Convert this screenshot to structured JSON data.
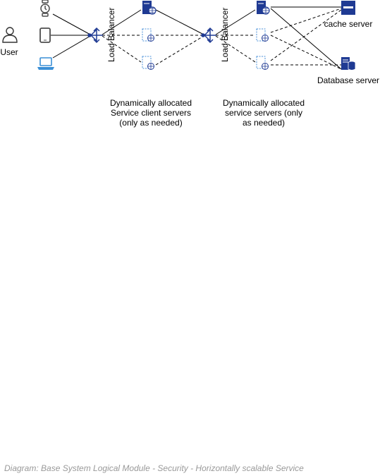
{
  "labels": {
    "user": "User",
    "load_balancer_1": "Load Balancer",
    "load_balancer_2": "Load Balancer",
    "cache_server": "cache server",
    "database_server": "Database server"
  },
  "notes": {
    "client_servers": [
      "Dynamically allocated",
      "Service client servers",
      "(only as needed)"
    ],
    "service_servers": [
      "Dynamically allocated",
      "service servers (only",
      "as needed)"
    ]
  },
  "caption": "Diagram: Base System Logical Module - Security - Horizontally scalable Service",
  "colors": {
    "navy": "#1f3a93",
    "server_dashed": "#4a90d9",
    "laptop": "#3a8fd6",
    "device_gray": "#4d4d4d",
    "caption": "#999999"
  }
}
